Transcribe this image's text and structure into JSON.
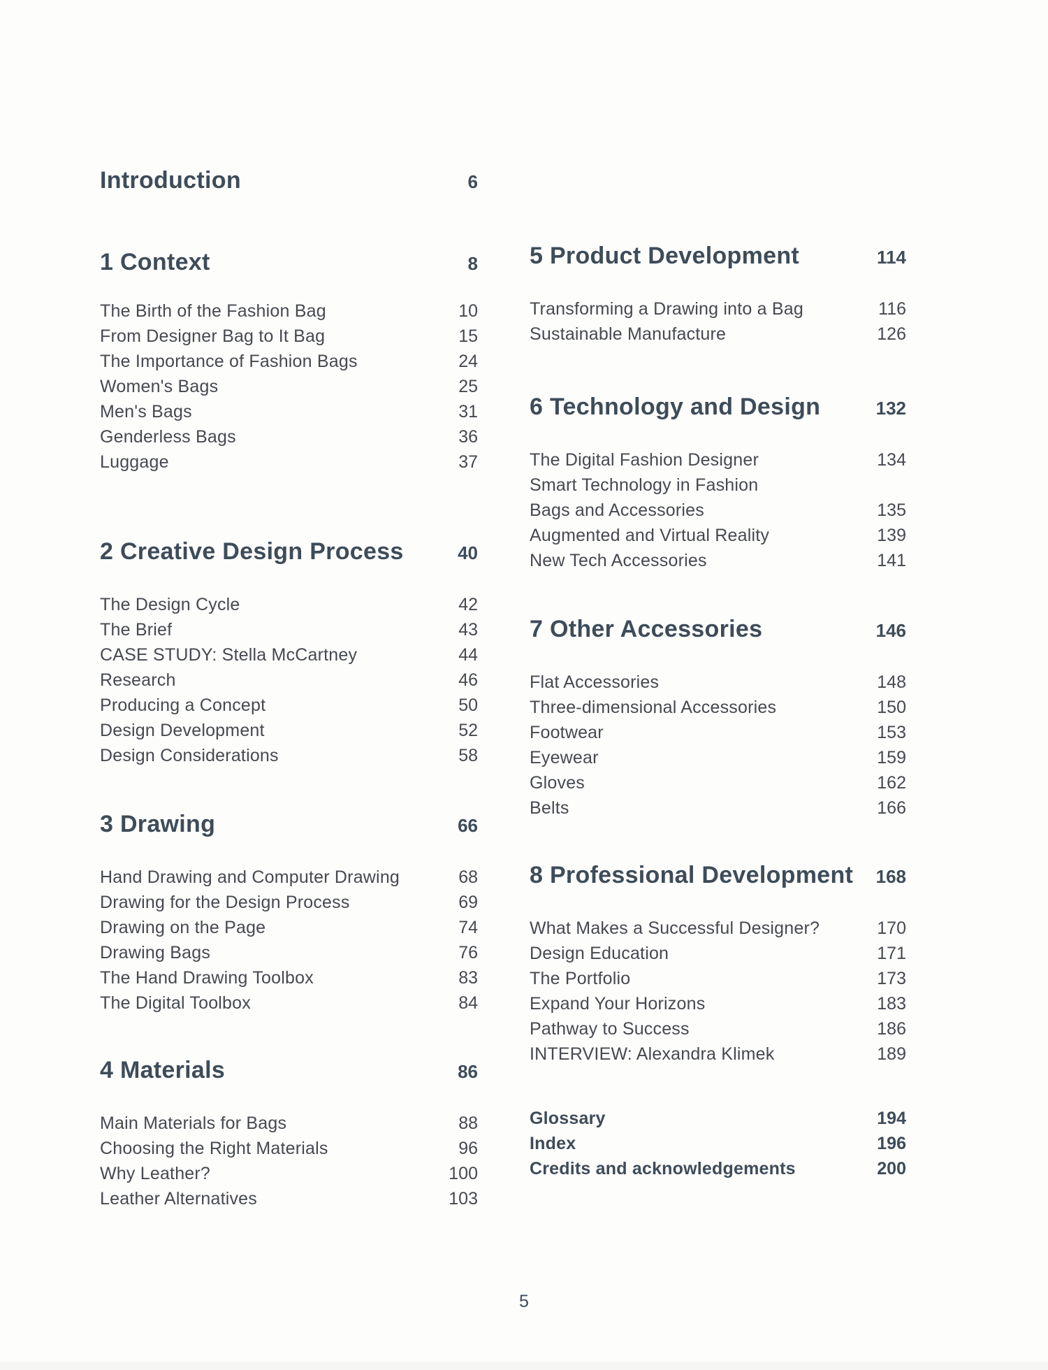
{
  "colors": {
    "heading": "#3e4c59",
    "body": "#46494f",
    "background": "#fdfdfc"
  },
  "toc": {
    "intro": {
      "label": "Introduction",
      "page": "6"
    },
    "left_sections": [
      {
        "title": "1 Context",
        "page": "8",
        "items": [
          {
            "label": "The Birth of the Fashion Bag",
            "page": "10"
          },
          {
            "label": "From Designer Bag to It Bag",
            "page": "15"
          },
          {
            "label": "The Importance of Fashion Bags",
            "page": "24"
          },
          {
            "label": "Women's Bags",
            "page": "25"
          },
          {
            "label": "Men's Bags",
            "page": "31"
          },
          {
            "label": "Genderless Bags",
            "page": "36"
          },
          {
            "label": "Luggage",
            "page": "37"
          }
        ]
      },
      {
        "title": "2 Creative Design Process",
        "page": "40",
        "items": [
          {
            "label": "The Design Cycle",
            "page": "42"
          },
          {
            "label": "The Brief",
            "page": "43"
          },
          {
            "label": "CASE STUDY: Stella McCartney",
            "page": "44"
          },
          {
            "label": "Research",
            "page": "46"
          },
          {
            "label": "Producing a Concept",
            "page": "50"
          },
          {
            "label": "Design Development",
            "page": "52"
          },
          {
            "label": "Design Considerations",
            "page": "58"
          }
        ]
      },
      {
        "title": "3 Drawing",
        "page": "66",
        "items": [
          {
            "label": "Hand Drawing and Computer Drawing",
            "page": "68"
          },
          {
            "label": "Drawing for the Design Process",
            "page": "69"
          },
          {
            "label": "Drawing on the Page",
            "page": "74"
          },
          {
            "label": "Drawing Bags",
            "page": "76"
          },
          {
            "label": "The Hand Drawing Toolbox",
            "page": "83"
          },
          {
            "label": "The Digital Toolbox",
            "page": "84"
          }
        ]
      },
      {
        "title": "4 Materials",
        "page": "86",
        "items": [
          {
            "label": "Main Materials for Bags",
            "page": "88"
          },
          {
            "label": "Choosing the Right Materials",
            "page": "96"
          },
          {
            "label": "Why Leather?",
            "page": "100"
          },
          {
            "label": "Leather Alternatives",
            "page": "103"
          }
        ]
      }
    ],
    "right_sections": [
      {
        "title": "5 Product Development",
        "page": "114",
        "items": [
          {
            "label": "Transforming a Drawing into a Bag",
            "page": "116"
          },
          {
            "label": "Sustainable Manufacture",
            "page": "126"
          }
        ]
      },
      {
        "title": "6 Technology and Design",
        "page": "132",
        "items": [
          {
            "label": "The Digital Fashion Designer",
            "page": "134"
          },
          {
            "label": "Smart Technology in Fashion",
            "page": ""
          },
          {
            "label": "Bags and Accessories",
            "page": "135"
          },
          {
            "label": "Augmented and Virtual Reality",
            "page": "139"
          },
          {
            "label": "New Tech Accessories",
            "page": "141"
          }
        ]
      },
      {
        "title": "7 Other Accessories",
        "page": "146",
        "items": [
          {
            "label": "Flat Accessories",
            "page": "148"
          },
          {
            "label": "Three-dimensional Accessories",
            "page": "150"
          },
          {
            "label": "Footwear",
            "page": "153"
          },
          {
            "label": "Eyewear",
            "page": "159"
          },
          {
            "label": "Gloves",
            "page": "162"
          },
          {
            "label": "Belts",
            "page": "166"
          }
        ]
      },
      {
        "title": "8 Professional Development",
        "page": "168",
        "items": [
          {
            "label": "What Makes a Successful Designer?",
            "page": "170"
          },
          {
            "label": "Design Education",
            "page": "171"
          },
          {
            "label": "The Portfolio",
            "page": "173"
          },
          {
            "label": "Expand Your Horizons",
            "page": "183"
          },
          {
            "label": "Pathway to Success",
            "page": "186"
          },
          {
            "label": "INTERVIEW: Alexandra Klimek",
            "page": "189"
          }
        ]
      }
    ],
    "back_matter": [
      {
        "label": "Glossary",
        "page": "194"
      },
      {
        "label": "Index",
        "page": "196"
      },
      {
        "label": "Credits and acknowledgements",
        "page": "200"
      }
    ],
    "footer_page_number": "5"
  }
}
